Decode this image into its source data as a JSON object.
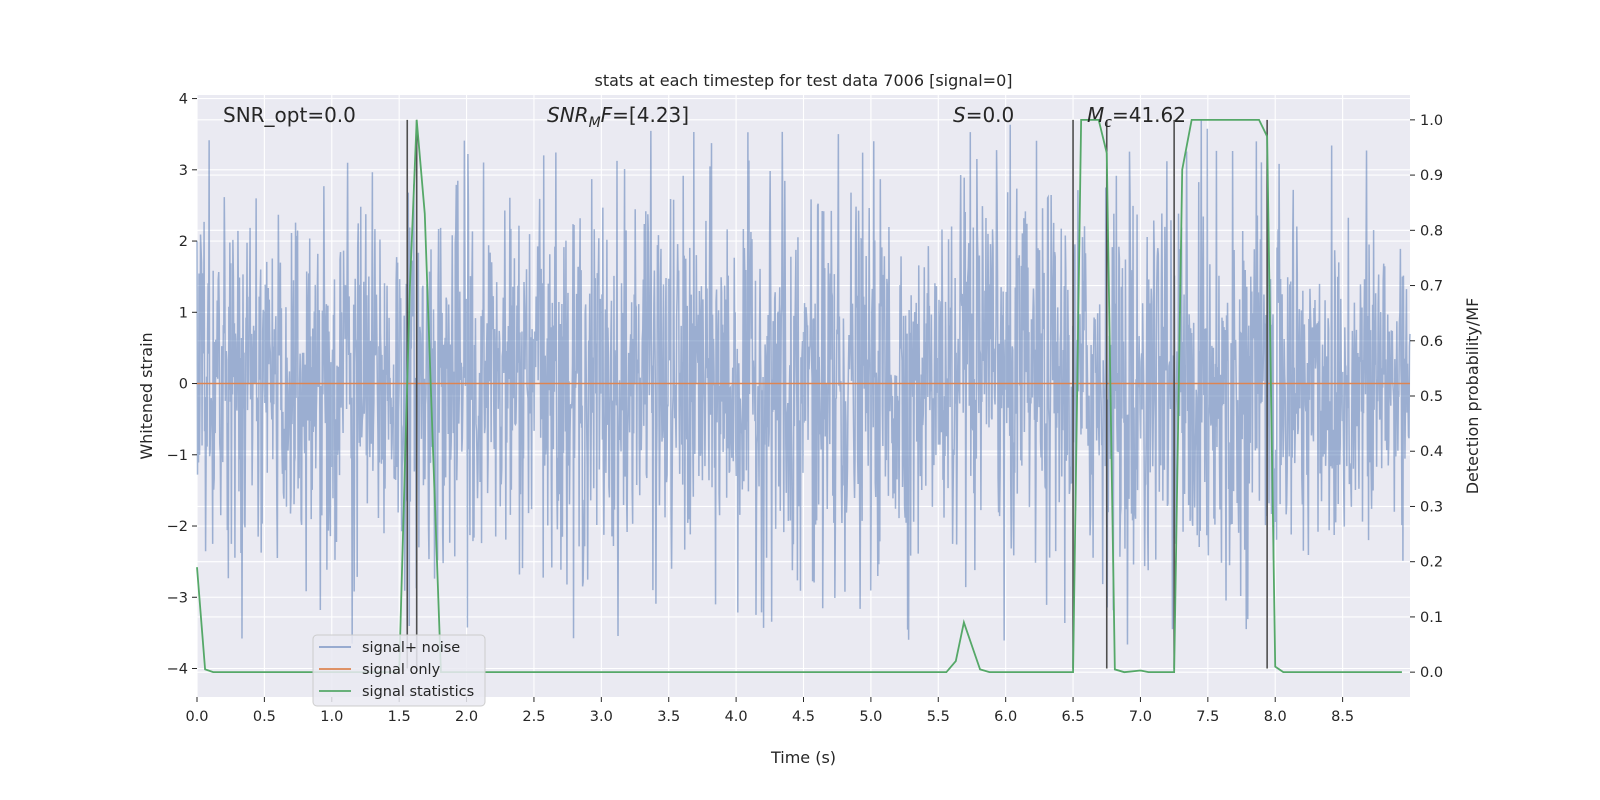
{
  "chart_data": {
    "type": "line",
    "title": "stats at each timestep for test data 7006 [signal=0]",
    "xlabel": "Time (s)",
    "ylabel_left": "Whitened strain",
    "ylabel_right": "Detection probability/MF",
    "xlim": [
      0.0,
      9.0
    ],
    "ylim_left": [
      -4.4,
      4.05
    ],
    "ylim_right": [
      -0.045,
      1.045
    ],
    "x_ticks": [
      "0.0",
      "0.5",
      "1.0",
      "1.5",
      "2.0",
      "2.5",
      "3.0",
      "3.5",
      "4.0",
      "4.5",
      "5.0",
      "5.5",
      "6.0",
      "6.5",
      "7.0",
      "7.5",
      "8.0",
      "8.5"
    ],
    "y_ticks_left": [
      "−4",
      "−3",
      "−2",
      "−1",
      "0",
      "1",
      "2",
      "3",
      "4"
    ],
    "y_ticks_right": [
      "0.0",
      "0.1",
      "0.2",
      "0.3",
      "0.4",
      "0.5",
      "0.6",
      "0.7",
      "0.8",
      "0.9",
      "1.0"
    ],
    "grid": true,
    "legend_position": "lower-left",
    "annotations": [
      {
        "text_plain": "SNR_opt=0.0"
      },
      {
        "italic": "SNR",
        "sub": "M",
        "italic2": "F",
        "rest": "=[4.23]"
      },
      {
        "italic": "S",
        "rest": "=0.0"
      },
      {
        "italic": "M",
        "sub": "c",
        "rest": "=41.62"
      }
    ],
    "series": [
      {
        "name": "signal+ noise",
        "color": "#4c72b0",
        "note_type": "dense whitened noise trace",
        "x_range": [
          0.0,
          9.0
        ],
        "approx_amplitude": {
          "typical": 1.3,
          "max": 3.7
        }
      },
      {
        "name": "signal only",
        "color": "#dd8452",
        "x": [
          0.0,
          9.0
        ],
        "y": [
          0.0,
          0.0
        ]
      },
      {
        "name": "signal statistics",
        "color": "#55a868",
        "axis": "right",
        "x": [
          0.0,
          0.06,
          0.12,
          1.5,
          1.58,
          1.63,
          1.69,
          1.75,
          1.81,
          5.56,
          5.63,
          5.69,
          5.81,
          5.88,
          6.5,
          6.56,
          6.62,
          6.69,
          6.75,
          6.81,
          6.88,
          7.0,
          7.06,
          7.25,
          7.31,
          7.38,
          7.88,
          7.94,
          8.0,
          8.06,
          8.13,
          8.94
        ],
        "y": [
          0.19,
          0.005,
          0.0,
          0.0,
          0.7,
          1.0,
          0.83,
          0.41,
          0.0,
          0.0,
          0.02,
          0.09,
          0.005,
          0.0,
          0.0,
          1.0,
          1.0,
          1.0,
          0.94,
          0.005,
          0.0,
          0.003,
          0.0,
          0.0,
          0.91,
          1.0,
          1.0,
          0.97,
          0.01,
          0.0,
          0.0,
          0.0
        ]
      }
    ],
    "vertical_markers": {
      "color": "#4f4f4f",
      "x": [
        1.56,
        1.63,
        6.5,
        6.75,
        7.25,
        7.94
      ],
      "y_top_right_axis": 1.0,
      "y_bottom_left_axis": -4.0
    }
  },
  "legend": {
    "items": [
      {
        "label": "signal+ noise",
        "color": "#4c72b0"
      },
      {
        "label": "signal only",
        "color": "#dd8452"
      },
      {
        "label": "signal statistics",
        "color": "#55a868"
      }
    ]
  },
  "colors": {
    "axes_bg": "#eaeaf2",
    "grid": "#ffffff",
    "noise": "#4c72b0",
    "signal": "#dd8452",
    "stats": "#55a868",
    "markers": "#4f4f4f"
  }
}
